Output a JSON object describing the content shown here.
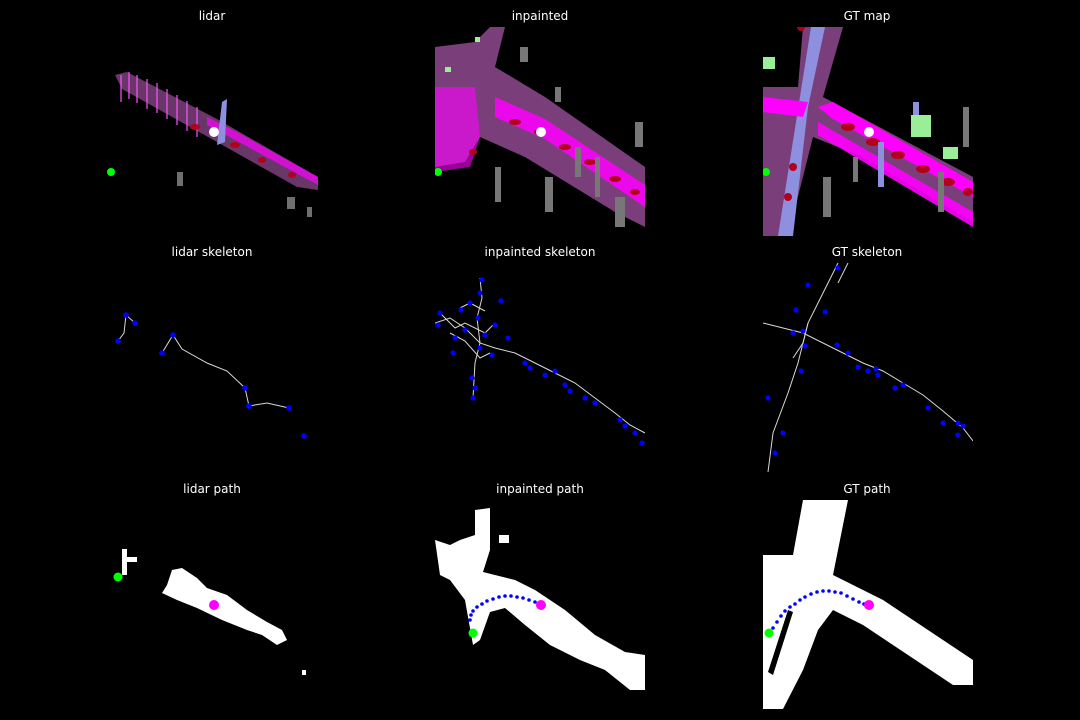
{
  "figure": {
    "background": "#000000",
    "panels": [
      {
        "title": "lidar"
      },
      {
        "title": "inpainted"
      },
      {
        "title": "GT map"
      },
      {
        "title": "lidar skeleton"
      },
      {
        "title": "inpainted skeleton"
      },
      {
        "title": "GT skeleton"
      },
      {
        "title": "lidar path"
      },
      {
        "title": "inpainted path"
      },
      {
        "title": "GT path"
      }
    ]
  },
  "colors": {
    "road": "#7a3f7a",
    "lane_edge": "#ff00ff",
    "lane_marking": "#b3001b",
    "sidewalk": "#8f8fe0",
    "vegetation": "#9aee9a",
    "building": "#6f6f6f",
    "start_marker": "#00ff00",
    "goal_marker": "#ffffff",
    "goal_marker_path": "#ff00ff",
    "skeleton_line": "#d8d8d8",
    "skeleton_node": "#0000ff",
    "free_space": "#ffffff",
    "path_dots": "#0000ff"
  }
}
